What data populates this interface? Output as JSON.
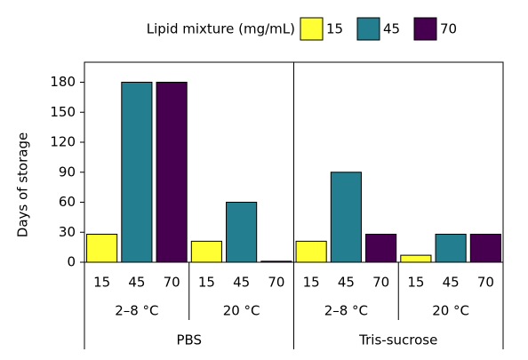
{
  "chart_data": {
    "type": "bar",
    "legend_title": "Lipid mixture (mg/mL)",
    "ylabel": "Days of storage",
    "groups": [
      "PBS",
      "Tris-sucrose"
    ],
    "categories": [
      "2–8 °C",
      "20 °C",
      "2–8 °C",
      "20 °C"
    ],
    "series": [
      {
        "name": "15",
        "color": "#ffff33",
        "values": [
          28,
          21,
          21,
          7
        ]
      },
      {
        "name": "45",
        "color": "#237f8f",
        "values": [
          180,
          60,
          90,
          28
        ]
      },
      {
        "name": "70",
        "color": "#47004f",
        "values": [
          180,
          1,
          28,
          28
        ]
      }
    ],
    "ylim": [
      0,
      200
    ],
    "yticks": [
      0,
      30,
      60,
      90,
      120,
      150,
      180
    ]
  }
}
